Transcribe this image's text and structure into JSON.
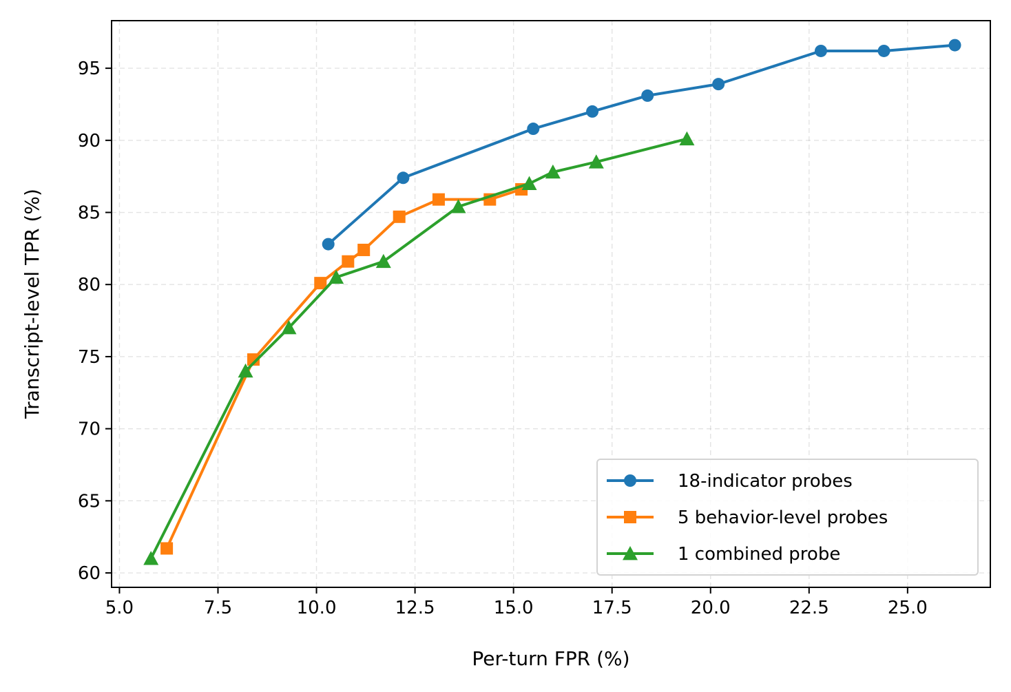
{
  "chart_data": {
    "type": "line",
    "xlabel": "Per-turn FPR (%)",
    "ylabel": "Transcript-level TPR (%)",
    "xlim": [
      4.8,
      27.1
    ],
    "ylim": [
      59.0,
      98.3
    ],
    "xticks": [
      "5.0",
      "7.5",
      "10.0",
      "12.5",
      "15.0",
      "17.5",
      "20.0",
      "22.5",
      "25.0"
    ],
    "yticks": [
      "60",
      "65",
      "70",
      "75",
      "80",
      "85",
      "90",
      "95"
    ],
    "grid": true,
    "legend_position": "bottom-right",
    "series": [
      {
        "name": "18-indicator probes",
        "color": "#1f77b4",
        "marker": "circle",
        "x": [
          10.3,
          12.2,
          15.5,
          17.0,
          18.4,
          20.2,
          22.8,
          24.4,
          26.2
        ],
        "y": [
          82.8,
          87.4,
          90.8,
          92.0,
          93.1,
          93.9,
          96.2,
          96.2,
          96.6
        ]
      },
      {
        "name": "5 behavior-level probes",
        "color": "#ff7f0e",
        "marker": "square",
        "x": [
          6.2,
          8.4,
          10.1,
          10.8,
          11.2,
          12.1,
          13.1,
          14.4,
          15.2
        ],
        "y": [
          61.7,
          74.8,
          80.1,
          81.6,
          82.4,
          84.7,
          85.9,
          85.9,
          86.6
        ]
      },
      {
        "name": "1 combined probe",
        "color": "#2ca02c",
        "marker": "triangle",
        "x": [
          5.8,
          8.2,
          9.3,
          10.5,
          11.7,
          13.6,
          15.4,
          16.0,
          17.1,
          19.4
        ],
        "y": [
          61.0,
          74.0,
          77.0,
          80.5,
          81.6,
          85.4,
          87.0,
          87.8,
          88.5,
          90.1
        ]
      }
    ]
  }
}
